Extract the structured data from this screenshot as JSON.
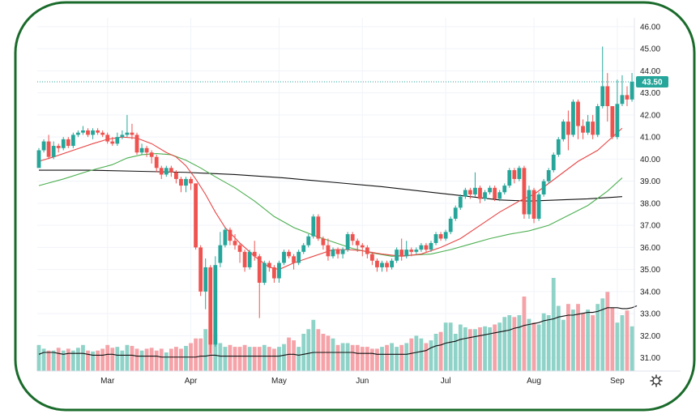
{
  "chart_data": {
    "type": "candlestick",
    "title": "",
    "xlabel": "",
    "ylabel": "",
    "ylim": [
      30.4,
      46.4
    ],
    "y_ticks": [
      "46.00",
      "45.00",
      "44.00",
      "43.00",
      "42.00",
      "41.00",
      "40.00",
      "39.00",
      "38.00",
      "37.00",
      "36.00",
      "35.00",
      "34.00",
      "33.00",
      "32.00",
      "31.00"
    ],
    "x_ticks": [
      {
        "label": "Mar",
        "index": 14
      },
      {
        "label": "Apr",
        "index": 31
      },
      {
        "label": "May",
        "index": 49
      },
      {
        "label": "Jun",
        "index": 66
      },
      {
        "label": "Jul",
        "index": 83
      },
      {
        "label": "Aug",
        "index": 101
      },
      {
        "label": "Sep",
        "index": 118
      }
    ],
    "last_price_label": "43.50",
    "last_price": 43.5,
    "colors": {
      "up": "#26a69a",
      "down": "#ef5350",
      "ma_short": "#e84545",
      "ma_mid": "#4caf50",
      "ma_long": "#111111",
      "vol_ma": "#111111",
      "vol_up": "#8fd3c8",
      "vol_down": "#f5a3a8",
      "price_line": "#26a69a",
      "border": "#1a6b2b"
    },
    "candles": [
      [
        39.6,
        40.4,
        39.7,
        40.5
      ],
      [
        40.4,
        40.8,
        40.3,
        40.9
      ],
      [
        40.8,
        40.1,
        40,
        41.1
      ],
      [
        40.1,
        40.6,
        40,
        40.8
      ],
      [
        40.6,
        40.5,
        40.3,
        40.7
      ],
      [
        40.5,
        40.9,
        40.4,
        41
      ],
      [
        40.9,
        40.6,
        40.5,
        41
      ],
      [
        40.6,
        41.1,
        40.5,
        41.2
      ],
      [
        41.1,
        41.2,
        41,
        41.3
      ],
      [
        41.2,
        41.3,
        41.1,
        41.5
      ],
      [
        41.3,
        41.1,
        41,
        41.4
      ],
      [
        41.1,
        41.3,
        40.9,
        41.4
      ],
      [
        41.3,
        41.2,
        41.1,
        41.4
      ],
      [
        41.2,
        41.1,
        41,
        41.3
      ],
      [
        41.1,
        40.8,
        40.7,
        41.2
      ],
      [
        40.8,
        40.7,
        40.6,
        41
      ],
      [
        40.7,
        41,
        40.6,
        41.2
      ],
      [
        41,
        41.1,
        40.9,
        41.3
      ],
      [
        41.1,
        41.2,
        41,
        42
      ],
      [
        41.2,
        41.1,
        40.9,
        41.6
      ],
      [
        41.1,
        40.3,
        40.2,
        41.2
      ],
      [
        40.3,
        40.5,
        40.2,
        40.7
      ],
      [
        40.5,
        40.3,
        40.1,
        40.6
      ],
      [
        40.3,
        40.1,
        39.8,
        40.4
      ],
      [
        40.1,
        39.6,
        39.4,
        40.2
      ],
      [
        39.6,
        39.3,
        39.1,
        39.7
      ],
      [
        39.3,
        39.6,
        39.2,
        39.7
      ],
      [
        39.6,
        39.4,
        39.2,
        39.7
      ],
      [
        39.4,
        39.1,
        38.9,
        39.5
      ],
      [
        39.1,
        38.8,
        38.5,
        39.2
      ],
      [
        38.8,
        39.1,
        38.5,
        39.2
      ],
      [
        39.1,
        38.9,
        38.6,
        39.2
      ],
      [
        38.9,
        36,
        35.9,
        38.9
      ],
      [
        36,
        34,
        33.8,
        36.1
      ],
      [
        34,
        35.1,
        33.2,
        35.5
      ],
      [
        35.1,
        31.6,
        31.2,
        35.2
      ],
      [
        31.6,
        35.2,
        31.5,
        35.6
      ],
      [
        35.3,
        36.1,
        35.1,
        36.7
      ],
      [
        36.1,
        36.8,
        36,
        36.9
      ],
      [
        36.8,
        36.3,
        36.1,
        36.9
      ],
      [
        36.3,
        36.1,
        35.9,
        36.6
      ],
      [
        36.1,
        35.8,
        35.3,
        36.2
      ],
      [
        35.8,
        35.1,
        34.9,
        35.9
      ],
      [
        35.1,
        35.8,
        35,
        35.9
      ],
      [
        35.8,
        35.6,
        35.4,
        36.3
      ],
      [
        35.6,
        34.4,
        32.8,
        35.7
      ],
      [
        34.4,
        35.3,
        34.3,
        35.4
      ],
      [
        35.3,
        35.1,
        34.9,
        35.4
      ],
      [
        35.1,
        34.6,
        34.4,
        35.2
      ],
      [
        34.6,
        35.3,
        34.4,
        35.4
      ],
      [
        35.3,
        35.8,
        35.2,
        35.9
      ],
      [
        35.8,
        35.6,
        35.5,
        35.9
      ],
      [
        35.6,
        35.3,
        35,
        35.7
      ],
      [
        35.3,
        35.8,
        35.2,
        35.9
      ],
      [
        35.8,
        36.1,
        35.7,
        36.2
      ],
      [
        36.1,
        36.5,
        36,
        36.6
      ],
      [
        36.5,
        37.4,
        36.4,
        37.5
      ],
      [
        37.4,
        36.4,
        36.3,
        37.5
      ],
      [
        36.4,
        36.1,
        35.9,
        36.5
      ],
      [
        36.1,
        35.6,
        35.4,
        36.4
      ],
      [
        35.6,
        35.9,
        35.5,
        36
      ],
      [
        35.9,
        35.7,
        35.5,
        36
      ],
      [
        35.7,
        35.9,
        35.5,
        36
      ],
      [
        35.9,
        36.6,
        35.8,
        36.7
      ],
      [
        36.6,
        36.3,
        36.1,
        36.7
      ],
      [
        36.3,
        36.1,
        35.8,
        36.4
      ],
      [
        36.1,
        36,
        35.6,
        36.2
      ],
      [
        36,
        35.7,
        35.5,
        36.1
      ],
      [
        35.7,
        35.4,
        35.2,
        35.8
      ],
      [
        35.4,
        35.1,
        34.9,
        35.5
      ],
      [
        35.1,
        35.3,
        34.9,
        35.4
      ],
      [
        35.3,
        35.1,
        34.9,
        35.4
      ],
      [
        35.1,
        35.4,
        35,
        35.5
      ],
      [
        35.4,
        35.9,
        35.3,
        36
      ],
      [
        35.9,
        35.6,
        35.4,
        36.4
      ],
      [
        35.6,
        35.9,
        35.5,
        36.3
      ],
      [
        35.9,
        35.8,
        35.6,
        36
      ],
      [
        35.8,
        35.9,
        35.7,
        36
      ],
      [
        35.9,
        36.1,
        35.8,
        36.2
      ],
      [
        36.1,
        35.9,
        35.8,
        36.2
      ],
      [
        35.9,
        36.2,
        35.8,
        36.3
      ],
      [
        36.2,
        36.6,
        36.1,
        36.7
      ],
      [
        36.6,
        36.4,
        36.3,
        36.7
      ],
      [
        36.4,
        36.7,
        36.3,
        36.8
      ],
      [
        36.7,
        37.3,
        36.6,
        37.4
      ],
      [
        37.3,
        37.8,
        37.2,
        37.9
      ],
      [
        37.8,
        38.3,
        37.7,
        38.4
      ],
      [
        38.3,
        38.6,
        38.2,
        38.7
      ],
      [
        38.6,
        38.4,
        38.2,
        38.7
      ],
      [
        38.4,
        38.7,
        38.3,
        39.4
      ],
      [
        38.7,
        38.2,
        38,
        38.8
      ],
      [
        38.2,
        38.5,
        38.1,
        38.6
      ],
      [
        38.5,
        38.7,
        38.4,
        38.8
      ],
      [
        38.7,
        38.2,
        38.1,
        38.8
      ],
      [
        38.2,
        38.5,
        38.1,
        38.6
      ],
      [
        38.5,
        38.8,
        38.4,
        38.9
      ],
      [
        38.8,
        39.5,
        38.7,
        39.6
      ],
      [
        39.5,
        39.1,
        38.9,
        39.6
      ],
      [
        39.1,
        39.6,
        39,
        39.7
      ],
      [
        39.6,
        37.5,
        37.3,
        39.7
      ],
      [
        37.5,
        38.6,
        37.3,
        38.8
      ],
      [
        38.6,
        37.3,
        37.1,
        38.7
      ],
      [
        37.3,
        38.4,
        37.2,
        38.5
      ],
      [
        38.4,
        39,
        38.3,
        39.1
      ],
      [
        39,
        39.5,
        38.9,
        39.6
      ],
      [
        39.5,
        40.2,
        39.4,
        40.3
      ],
      [
        40.2,
        40.9,
        40.1,
        41
      ],
      [
        40.9,
        41.7,
        40.8,
        41.8
      ],
      [
        41.7,
        41.1,
        40.4,
        42.2
      ],
      [
        41.1,
        42.6,
        41,
        42.7
      ],
      [
        42.6,
        41.5,
        40.9,
        42.7
      ],
      [
        41.5,
        41.2,
        40.9,
        41.8
      ],
      [
        41.2,
        41.7,
        41.1,
        42
      ],
      [
        41.7,
        41.1,
        40.9,
        42
      ],
      [
        41.1,
        42.4,
        41,
        42.5
      ],
      [
        42.4,
        43.3,
        42.3,
        45.1
      ],
      [
        43.3,
        42.4,
        41.7,
        43.9
      ],
      [
        42.4,
        41,
        40.9,
        42.4
      ],
      [
        41,
        42.5,
        40.9,
        43.6
      ],
      [
        42.5,
        42.9,
        42.4,
        43.8
      ],
      [
        42.9,
        42.7,
        42.4,
        43.3
      ],
      [
        42.7,
        43.5,
        42.6,
        43.9
      ]
    ],
    "volume_heights": [
      0.28,
      0.24,
      0.22,
      0.22,
      0.25,
      0.22,
      0.24,
      0.22,
      0.25,
      0.28,
      0.22,
      0.21,
      0.22,
      0.24,
      0.28,
      0.25,
      0.26,
      0.22,
      0.28,
      0.27,
      0.24,
      0.22,
      0.24,
      0.25,
      0.22,
      0.24,
      0.2,
      0.24,
      0.26,
      0.24,
      0.27,
      0.3,
      0.35,
      0.35,
      0.45,
      0.44,
      0.4,
      0.3,
      0.26,
      0.28,
      0.26,
      0.26,
      0.28,
      0.26,
      0.26,
      0.26,
      0.28,
      0.26,
      0.24,
      0.26,
      0.29,
      0.36,
      0.33,
      0.26,
      0.4,
      0.45,
      0.55,
      0.45,
      0.4,
      0.38,
      0.35,
      0.28,
      0.3,
      0.3,
      0.28,
      0.28,
      0.26,
      0.26,
      0.24,
      0.24,
      0.26,
      0.28,
      0.3,
      0.26,
      0.28,
      0.3,
      0.35,
      0.38,
      0.35,
      0.3,
      0.33,
      0.4,
      0.42,
      0.52,
      0.52,
      0.4,
      0.5,
      0.47,
      0.45,
      0.45,
      0.47,
      0.48,
      0.47,
      0.5,
      0.52,
      0.58,
      0.6,
      0.58,
      0.6,
      0.8,
      0.56,
      0.52,
      0.5,
      0.62,
      0.6,
      1,
      0.7,
      0.55,
      0.72,
      0.66,
      0.72,
      0.62,
      0.66,
      0.6,
      0.72,
      0.78,
      0.85,
      0.68,
      0.52,
      0.6,
      0.65,
      0.48,
      0.62
    ],
    "volume_ma_heights": [
      0.18,
      0.2,
      0.2,
      0.2,
      0.19,
      0.18,
      0.19,
      0.19,
      0.19,
      0.19,
      0.18,
      0.17,
      0.17,
      0.17,
      0.18,
      0.18,
      0.17,
      0.17,
      0.17,
      0.17,
      0.16,
      0.16,
      0.16,
      0.16,
      0.16,
      0.15,
      0.15,
      0.15,
      0.15,
      0.15,
      0.15,
      0.15,
      0.15,
      0.16,
      0.16,
      0.17,
      0.17,
      0.16,
      0.16,
      0.16,
      0.16,
      0.16,
      0.16,
      0.16,
      0.16,
      0.16,
      0.16,
      0.16,
      0.16,
      0.16,
      0.17,
      0.18,
      0.18,
      0.17,
      0.18,
      0.19,
      0.2,
      0.2,
      0.2,
      0.2,
      0.2,
      0.2,
      0.2,
      0.2,
      0.2,
      0.19,
      0.19,
      0.19,
      0.19,
      0.18,
      0.18,
      0.18,
      0.18,
      0.18,
      0.18,
      0.18,
      0.19,
      0.2,
      0.21,
      0.22,
      0.25,
      0.27,
      0.28,
      0.3,
      0.31,
      0.32,
      0.34,
      0.35,
      0.36,
      0.37,
      0.38,
      0.39,
      0.4,
      0.41,
      0.42,
      0.43,
      0.44,
      0.46,
      0.47,
      0.49,
      0.5,
      0.51,
      0.52,
      0.54,
      0.55,
      0.56,
      0.58,
      0.59,
      0.6,
      0.6,
      0.61,
      0.62,
      0.63,
      0.63,
      0.64,
      0.66,
      0.68,
      0.68,
      0.68,
      0.67,
      0.67,
      0.68,
      0.7
    ],
    "ma_short": [
      [
        0,
        39.9
      ],
      [
        3,
        40.1
      ],
      [
        7,
        40.4
      ],
      [
        11,
        40.7
      ],
      [
        14,
        40.9
      ],
      [
        17,
        41
      ],
      [
        20,
        40.95
      ],
      [
        23,
        40.7
      ],
      [
        26,
        40.3
      ],
      [
        28,
        40.1
      ],
      [
        30,
        39.7
      ],
      [
        32,
        39.1
      ],
      [
        34,
        38.4
      ],
      [
        36,
        37.6
      ],
      [
        38,
        36.9
      ],
      [
        41,
        36.2
      ],
      [
        44,
        35.6
      ],
      [
        47,
        35.1
      ],
      [
        49,
        35
      ],
      [
        52,
        35.3
      ],
      [
        56,
        35.6
      ],
      [
        60,
        35.9
      ],
      [
        63,
        35.9
      ],
      [
        66,
        35.85
      ],
      [
        70,
        35.7
      ],
      [
        74,
        35.6
      ],
      [
        78,
        35.7
      ],
      [
        82,
        36
      ],
      [
        86,
        36.4
      ],
      [
        90,
        37
      ],
      [
        94,
        37.6
      ],
      [
        98,
        38.1
      ],
      [
        101,
        38.4
      ],
      [
        104,
        38.9
      ],
      [
        107,
        39.4
      ],
      [
        110,
        39.9
      ],
      [
        114,
        40.4
      ],
      [
        116,
        40.8
      ],
      [
        119,
        41.4
      ]
    ],
    "ma_mid": [
      [
        0,
        38.8
      ],
      [
        5,
        39.1
      ],
      [
        10,
        39.45
      ],
      [
        15,
        39.75
      ],
      [
        18,
        40.05
      ],
      [
        21,
        40.2
      ],
      [
        24,
        40.25
      ],
      [
        27,
        40.2
      ],
      [
        30,
        39.95
      ],
      [
        33,
        39.6
      ],
      [
        36,
        39.2
      ],
      [
        40,
        38.7
      ],
      [
        44,
        38.1
      ],
      [
        48,
        37.4
      ],
      [
        52,
        36.9
      ],
      [
        56,
        36.55
      ],
      [
        60,
        36.25
      ],
      [
        64,
        35.95
      ],
      [
        68,
        35.75
      ],
      [
        72,
        35.6
      ],
      [
        76,
        35.65
      ],
      [
        80,
        35.7
      ],
      [
        84,
        35.9
      ],
      [
        88,
        36.15
      ],
      [
        92,
        36.4
      ],
      [
        96,
        36.6
      ],
      [
        100,
        36.75
      ],
      [
        104,
        37
      ],
      [
        108,
        37.45
      ],
      [
        112,
        37.9
      ],
      [
        116,
        38.55
      ],
      [
        119,
        39.15
      ]
    ],
    "ma_long": [
      [
        0,
        39.5
      ],
      [
        10,
        39.5
      ],
      [
        20,
        39.45
      ],
      [
        30,
        39.4
      ],
      [
        40,
        39.3
      ],
      [
        50,
        39.15
      ],
      [
        60,
        38.95
      ],
      [
        70,
        38.75
      ],
      [
        80,
        38.5
      ],
      [
        88,
        38.3
      ],
      [
        94,
        38.15
      ],
      [
        100,
        38.1
      ],
      [
        106,
        38.15
      ],
      [
        112,
        38.2
      ],
      [
        119,
        38.3
      ]
    ]
  }
}
